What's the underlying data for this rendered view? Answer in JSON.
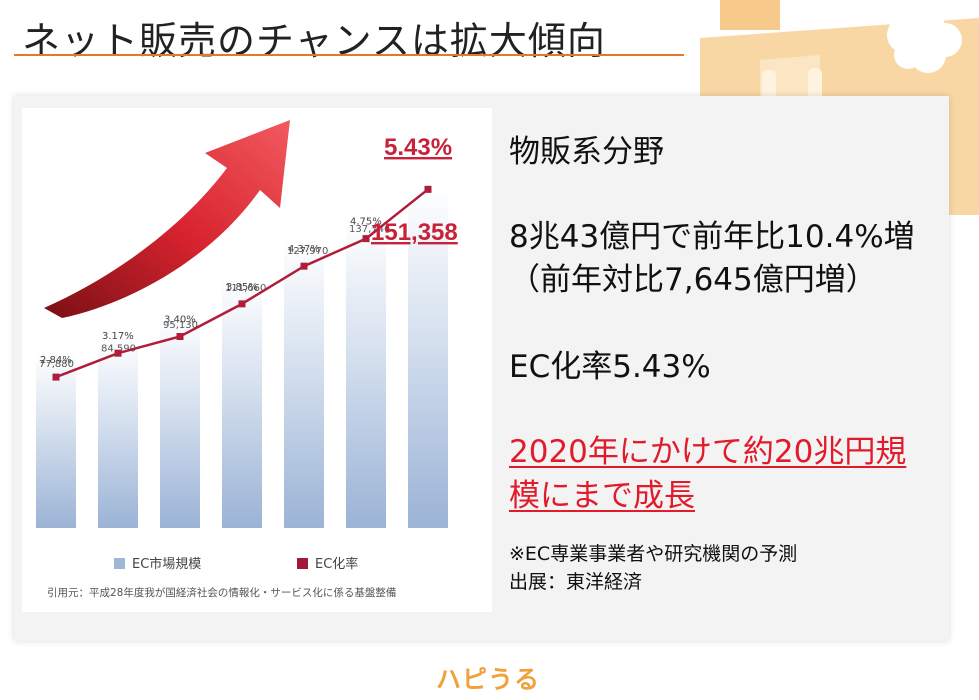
{
  "page": {
    "title": "ネット販売のチャンスは拡大傾向",
    "logo": "ハピうる"
  },
  "text_panel": {
    "heading": "物販系分野",
    "line1": "8兆43億円で前年比10.4%増",
    "line2": "（前年対比7,645億円増）",
    "line3": "EC化率5.43%",
    "highlight1": "2020年にかけて約20兆円規",
    "highlight2": "模にまで成長",
    "note1": "※EC専業事業者や研究機関の予測",
    "note2": "出展：東洋経済"
  },
  "chart_data": {
    "type": "bar",
    "categories": [
      "",
      "",
      "",
      "",
      "",
      "",
      ""
    ],
    "series": [
      {
        "name": "EC市場規模",
        "type": "bar",
        "values": [
          77880,
          84590,
          95130,
          111660,
          127970,
          137746,
          151358
        ],
        "color": "#9fb6d6"
      },
      {
        "name": "EC化率",
        "type": "line",
        "values": [
          2.84,
          3.17,
          3.4,
          3.85,
          4.37,
          4.75,
          5.43
        ],
        "color": "#b01d3a"
      }
    ],
    "bar_labels": [
      "77,880",
      "84,590",
      "95,130",
      "111,660",
      "127,970",
      "137,746",
      "151,358"
    ],
    "line_labels": [
      "2.84%",
      "3.17%",
      "3.40%",
      "3.85%",
      "4.37%",
      "4.75%",
      "5.43%"
    ],
    "legend": [
      "EC市場規模",
      "EC化率"
    ],
    "legend_position": "bottom",
    "source": "引用元：平成28年度我が国経済社会の情報化・サービス化に係る基盤整備",
    "bar_ylim": [
      0,
      160000
    ],
    "line_ylim": [
      2.0,
      6.0
    ],
    "grid": false
  },
  "colors": {
    "accent_rule": "#e8772e",
    "highlight": "#e21b2b",
    "line_series": "#b01d3a",
    "logo": "#f0a23a"
  }
}
